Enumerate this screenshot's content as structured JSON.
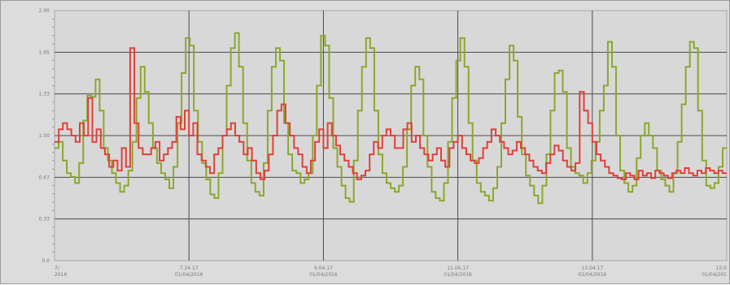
{
  "chart_data": {
    "type": "line",
    "title": "",
    "xlabel": "",
    "ylabel": "",
    "ylim": [
      0.0,
      2.0
    ],
    "grid": true,
    "yticks": [
      "2.00",
      "1.65",
      "1.33",
      "1.00",
      "0.67",
      "0.33",
      "0.0"
    ],
    "xticks": [
      {
        "line1": "7/",
        "line2": "2016"
      },
      {
        "line1": "7.24.17",
        "line2": "01/04/2016"
      },
      {
        "line1": "9.04.17",
        "line2": "01/04/2016"
      },
      {
        "line1": "11.06.17",
        "line2": "01/04/2016"
      },
      {
        "line1": "13.04.17",
        "line2": "01/04/2016"
      },
      {
        "line1": "15:0",
        "line2": "01/04/201"
      }
    ],
    "series": [
      {
        "color": "#8aa82c",
        "values": [
          0.9,
          0.95,
          0.8,
          0.7,
          0.67,
          0.62,
          0.78,
          1.12,
          1.32,
          1.31,
          1.45,
          1.2,
          0.9,
          0.8,
          0.7,
          0.62,
          0.55,
          0.6,
          0.72,
          0.95,
          1.3,
          1.55,
          1.35,
          1.1,
          0.9,
          0.78,
          0.7,
          0.65,
          0.58,
          0.75,
          1.1,
          1.5,
          1.78,
          1.72,
          1.2,
          0.95,
          0.78,
          0.65,
          0.53,
          0.5,
          0.7,
          1.0,
          1.4,
          1.7,
          1.82,
          1.55,
          1.1,
          0.8,
          0.62,
          0.55,
          0.52,
          0.78,
          1.2,
          1.55,
          1.7,
          1.6,
          1.1,
          0.85,
          0.72,
          0.7,
          0.62,
          0.65,
          0.7,
          1.0,
          1.4,
          1.8,
          1.72,
          1.3,
          0.9,
          0.75,
          0.6,
          0.5,
          0.47,
          0.8,
          1.2,
          1.55,
          1.78,
          1.7,
          1.2,
          0.85,
          0.7,
          0.62,
          0.58,
          0.55,
          0.6,
          0.75,
          1.05,
          1.4,
          1.55,
          1.45,
          1.0,
          0.75,
          0.55,
          0.5,
          0.48,
          0.62,
          0.95,
          1.3,
          1.6,
          1.78,
          1.55,
          1.1,
          0.8,
          0.62,
          0.55,
          0.52,
          0.48,
          0.58,
          0.75,
          1.1,
          1.45,
          1.72,
          1.6,
          1.15,
          0.85,
          0.68,
          0.6,
          0.52,
          0.46,
          0.6,
          0.85,
          1.2,
          1.5,
          1.52,
          1.35,
          0.9,
          0.75,
          0.7,
          0.68,
          0.62,
          0.7,
          0.8,
          0.95,
          1.2,
          1.4,
          1.75,
          1.55,
          1.0,
          0.72,
          0.62,
          0.55,
          0.6,
          0.82,
          1.0,
          1.1,
          1.0,
          0.9,
          0.72,
          0.65,
          0.6,
          0.55,
          0.7,
          0.95,
          1.25,
          1.55,
          1.75,
          1.7,
          1.2,
          0.8,
          0.6,
          0.58,
          0.62,
          0.75,
          0.9
        ]
      },
      {
        "color": "#e0403a",
        "values": [
          0.95,
          1.05,
          1.1,
          1.05,
          1.0,
          0.95,
          1.1,
          1.0,
          1.3,
          0.95,
          1.05,
          0.9,
          0.85,
          0.75,
          0.8,
          0.72,
          0.9,
          0.75,
          1.7,
          1.1,
          0.9,
          0.85,
          0.85,
          0.9,
          0.95,
          0.8,
          0.85,
          0.9,
          0.95,
          1.15,
          1.05,
          1.2,
          1.0,
          1.1,
          0.85,
          0.8,
          0.75,
          0.7,
          0.85,
          0.9,
          1.0,
          1.05,
          1.1,
          1.0,
          0.95,
          0.85,
          0.9,
          0.8,
          0.7,
          0.65,
          0.72,
          0.85,
          1.0,
          1.2,
          1.25,
          1.1,
          1.0,
          0.9,
          0.85,
          0.75,
          0.7,
          0.8,
          0.95,
          1.05,
          0.9,
          1.1,
          1.0,
          0.92,
          0.85,
          0.8,
          0.75,
          0.7,
          0.65,
          0.68,
          0.72,
          0.85,
          0.95,
          0.9,
          1.0,
          1.05,
          1.0,
          0.9,
          0.9,
          1.05,
          1.1,
          0.95,
          1.0,
          0.9,
          0.85,
          0.8,
          0.85,
          0.9,
          0.8,
          0.75,
          0.9,
          0.95,
          1.0,
          0.9,
          0.85,
          0.8,
          0.78,
          0.82,
          0.9,
          0.95,
          1.05,
          1.0,
          0.95,
          0.9,
          0.85,
          0.88,
          0.95,
          0.9,
          0.85,
          0.8,
          0.75,
          0.72,
          0.7,
          0.78,
          0.85,
          0.92,
          0.88,
          0.8,
          0.75,
          0.72,
          0.78,
          1.35,
          1.2,
          1.1,
          0.95,
          0.85,
          0.8,
          0.75,
          0.7,
          0.68,
          0.66,
          0.65,
          0.7,
          0.68,
          0.65,
          0.72,
          0.68,
          0.7,
          0.66,
          0.72,
          0.7,
          0.68,
          0.66,
          0.7,
          0.72,
          0.7,
          0.74,
          0.7,
          0.68,
          0.72,
          0.7,
          0.74,
          0.72,
          0.7,
          0.72,
          0.7
        ]
      }
    ]
  }
}
